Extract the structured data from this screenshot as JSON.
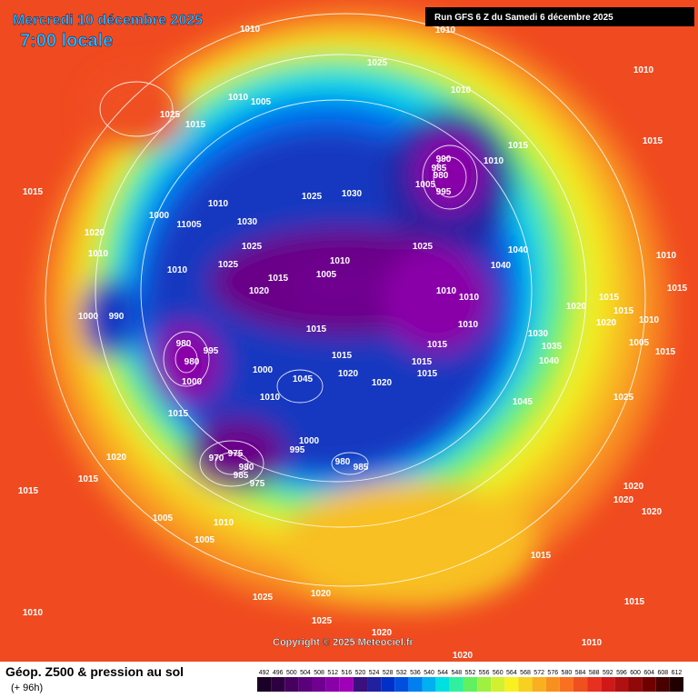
{
  "header": {
    "date": "Mercredi 10 décembre 2025",
    "time": "7:00 locale",
    "run": "Run GFS 6 Z du Samedi 6 décembre 2025"
  },
  "copyright": "Copyright © 2025 Meteociel.fr",
  "footer": {
    "title": "Géop. Z500 & pression au sol",
    "lead": "(+ 96h)"
  },
  "scale": {
    "values": [
      "492",
      "496",
      "500",
      "504",
      "508",
      "512",
      "516",
      "520",
      "524",
      "528",
      "532",
      "536",
      "540",
      "544",
      "548",
      "552",
      "556",
      "560",
      "564",
      "568",
      "572",
      "576",
      "580",
      "584",
      "588",
      "592",
      "596",
      "600",
      "604",
      "608",
      "612"
    ],
    "colors": [
      "#1a0026",
      "#2d0040",
      "#46005e",
      "#5a007a",
      "#700090",
      "#8a00a8",
      "#a000b8",
      "#3a1080",
      "#2020a0",
      "#0030c8",
      "#0050e0",
      "#0080f0",
      "#00b0f0",
      "#00e0e0",
      "#30f0a0",
      "#60f060",
      "#a0f040",
      "#d0f030",
      "#f8f020",
      "#f8d020",
      "#f8b020",
      "#f89020",
      "#f87020",
      "#f05020",
      "#e83020",
      "#d01818",
      "#b01010",
      "#900808",
      "#700000",
      "#480000",
      "#200000"
    ]
  },
  "isobar_labels": [
    "1010",
    "1010",
    "1025",
    "1010",
    "1010",
    "1010",
    "1005",
    "1025",
    "1015",
    "990",
    "985",
    "980",
    "1005",
    "995",
    "1010",
    "1015",
    "1015",
    "1015",
    "1025",
    "1030",
    "1000",
    "1010",
    "1030",
    "11005",
    "1020",
    "1025",
    "1025",
    "1040",
    "1040",
    "1010",
    "1010",
    "1025",
    "1010",
    "1005",
    "1015",
    "1020",
    "1010",
    "1010",
    "1020",
    "1000",
    "990",
    "1015",
    "1010",
    "1030",
    "1015",
    "1035",
    "1015",
    "1040",
    "980",
    "995",
    "980",
    "1015",
    "1015",
    "1000",
    "1045",
    "1020",
    "1020",
    "1000",
    "1010",
    "1045",
    "1015",
    "1000",
    "995",
    "975",
    "970",
    "980",
    "985",
    "975",
    "980",
    "985",
    "1020",
    "1015",
    "1015",
    "1005",
    "1010",
    "1005",
    "1015",
    "1025",
    "1020",
    "1025",
    "1020",
    "1010",
    "1020",
    "1010",
    "1015",
    "1025",
    "1020",
    "1020",
    "1020",
    "1005",
    "1015",
    "1010",
    "1015",
    "1020",
    "1015",
    "1015",
    "1010"
  ]
}
